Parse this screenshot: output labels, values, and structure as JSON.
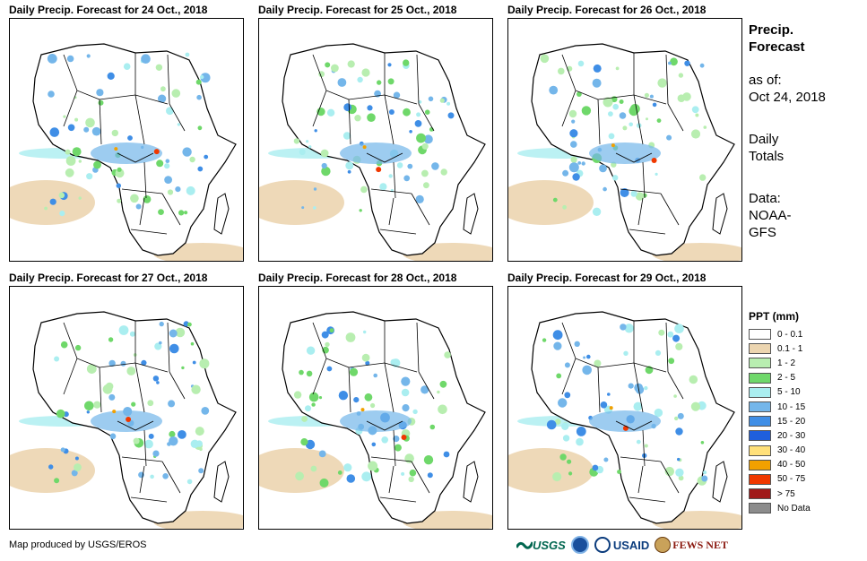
{
  "panels": [
    {
      "title": "Daily Precip. Forecast for 24 Oct., 2018"
    },
    {
      "title": "Daily Precip. Forecast for 25 Oct., 2018"
    },
    {
      "title": "Daily Precip. Forecast for 26 Oct., 2018"
    },
    {
      "title": "Daily Precip. Forecast for 27 Oct., 2018"
    },
    {
      "title": "Daily Precip. Forecast for 28 Oct., 2018"
    },
    {
      "title": "Daily Precip. Forecast for 29 Oct., 2018"
    }
  ],
  "info": {
    "heading_line1": "Precip.",
    "heading_line2": "Forecast",
    "asof_line1": "as of:",
    "asof_line2": "Oct 24, 2018",
    "daily_line1": "Daily",
    "daily_line2": "Totals",
    "data_line1": "Data:",
    "data_line2": "NOAA-",
    "data_line3": "GFS"
  },
  "legend": {
    "title": "PPT (mm)",
    "items": [
      {
        "label": "0 - 0.1",
        "color": "#ffffff"
      },
      {
        "label": "0.1 - 1",
        "color": "#ecd5b0"
      },
      {
        "label": "1 - 2",
        "color": "#b8eeb0"
      },
      {
        "label": "2 - 5",
        "color": "#6fd86a"
      },
      {
        "label": "5 - 10",
        "color": "#aaeef0"
      },
      {
        "label": "10 - 15",
        "color": "#74b6ea"
      },
      {
        "label": "15 - 20",
        "color": "#3f8ee6"
      },
      {
        "label": "20 - 30",
        "color": "#1f5fdc"
      },
      {
        "label": "30 - 40",
        "color": "#ffe07a"
      },
      {
        "label": "40 - 50",
        "color": "#f2a000"
      },
      {
        "label": "50 - 75",
        "color": "#f03800"
      },
      {
        "label": "> 75",
        "color": "#a01818"
      },
      {
        "label": "No Data",
        "color": "#8c8c8c"
      }
    ]
  },
  "credit": "Map produced by USGS/EROS",
  "logos": {
    "usgs": "USGS",
    "usaid": "USAID",
    "fews": "FEWS NET"
  }
}
